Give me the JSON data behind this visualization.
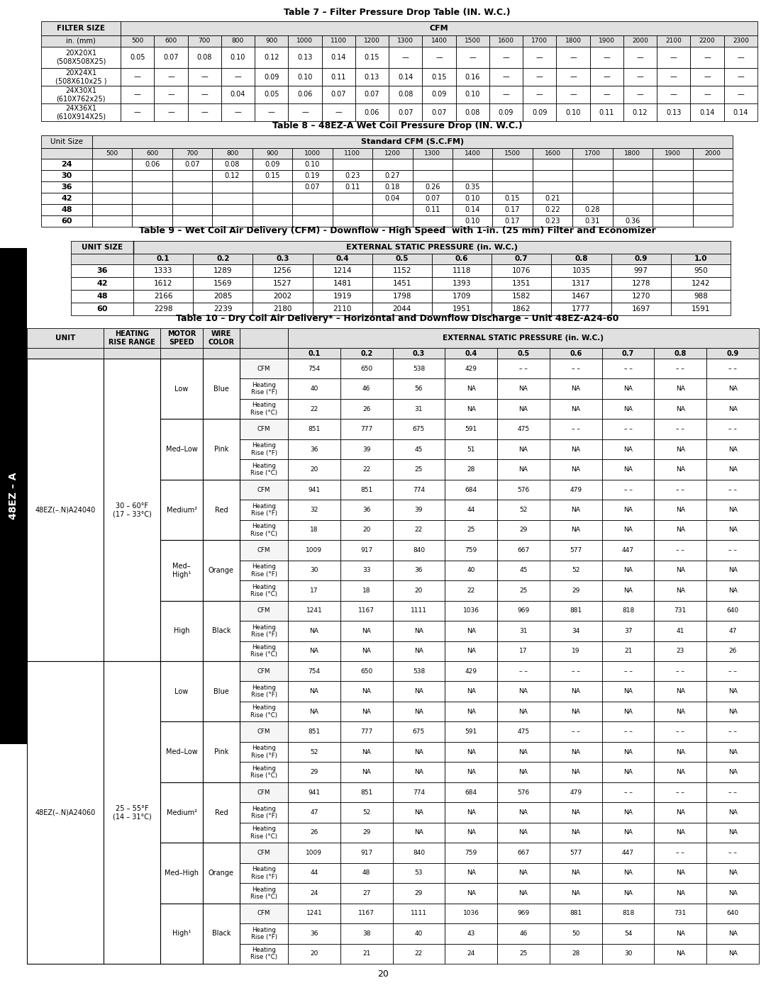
{
  "table7_title": "Table 7 – Filter Pressure Drop Table (IN. W.C.)",
  "table7_cfm_cols": [
    "500",
    "600",
    "700",
    "800",
    "900",
    "1000",
    "1100",
    "1200",
    "1300",
    "1400",
    "1500",
    "1600",
    "1700",
    "1800",
    "1900",
    "2000",
    "2100",
    "2200",
    "2300"
  ],
  "table7_rows": [
    [
      "20X20X1\n(508X508X25)",
      "0.05",
      "0.07",
      "0.08",
      "0.10",
      "0.12",
      "0.13",
      "0.14",
      "0.15",
      "—",
      "—",
      "—",
      "—",
      "—",
      "—",
      "—",
      "—",
      "—",
      "—",
      "—"
    ],
    [
      "20X24X1\n(508X610x25 )",
      "—",
      "—",
      "—",
      "—",
      "0.09",
      "0.10",
      "0.11",
      "0.13",
      "0.14",
      "0.15",
      "0.16",
      "—",
      "—",
      "—",
      "—",
      "—",
      "—",
      "—",
      "—"
    ],
    [
      "24X30X1\n(610X762x25)",
      "—",
      "—",
      "—",
      "0.04",
      "0.05",
      "0.06",
      "0.07",
      "0.07",
      "0.08",
      "0.09",
      "0.10",
      "—",
      "—",
      "—",
      "—",
      "—",
      "—",
      "—",
      "—"
    ],
    [
      "24X36X1\n(610X914X25)",
      "—",
      "—",
      "—",
      "—",
      "—",
      "—",
      "—",
      "0.06",
      "0.07",
      "0.07",
      "0.08",
      "0.09",
      "0.09",
      "0.10",
      "0.11",
      "0.12",
      "0.13",
      "0.14",
      "0.14"
    ]
  ],
  "table8_title": "Table 8 – 48EZ-A Wet Coil Pressure Drop (IN. W.C.)",
  "table8_cfm_cols": [
    "500",
    "600",
    "700",
    "800",
    "900",
    "1000",
    "1100",
    "1200",
    "1300",
    "1400",
    "1500",
    "1600",
    "1700",
    "1800",
    "1900",
    "2000"
  ],
  "table8_rows": [
    [
      "24",
      "",
      "0.06",
      "0.07",
      "0.08",
      "0.09",
      "0.10",
      "",
      "",
      "",
      "",
      "",
      "",
      "",
      "",
      "",
      ""
    ],
    [
      "30",
      "",
      "",
      "",
      "0.12",
      "0.15",
      "0.19",
      "0.23",
      "0.27",
      "",
      "",
      "",
      "",
      "",
      "",
      "",
      ""
    ],
    [
      "36",
      "",
      "",
      "",
      "",
      "",
      "0.07",
      "0.11",
      "0.18",
      "0.26",
      "0.35",
      "",
      "",
      "",
      "",
      "",
      ""
    ],
    [
      "42",
      "",
      "",
      "",
      "",
      "",
      "",
      "",
      "0.04",
      "0.07",
      "0.10",
      "0.15",
      "0.21",
      "",
      "",
      "",
      ""
    ],
    [
      "48",
      "",
      "",
      "",
      "",
      "",
      "",
      "",
      "",
      "0.11",
      "0.14",
      "0.17",
      "0.22",
      "0.28",
      "",
      "",
      ""
    ],
    [
      "60",
      "",
      "",
      "",
      "",
      "",
      "",
      "",
      "",
      "",
      "0.10",
      "0.17",
      "0.23",
      "0.31",
      "0.36",
      "",
      ""
    ]
  ],
  "table9_title": "Table 9 – Wet Coil Air Delivery (CFM) - Downflow - High Speed  with 1-in. (25 mm) Filter and Economizer",
  "table9_esp_cols": [
    "0.1",
    "0.2",
    "0.3",
    "0.4",
    "0.5",
    "0.6",
    "0.7",
    "0.8",
    "0.9",
    "1.0"
  ],
  "table9_rows": [
    [
      "36",
      "1333",
      "1289",
      "1256",
      "1214",
      "1152",
      "1118",
      "1076",
      "1035",
      "997",
      "950"
    ],
    [
      "42",
      "1612",
      "1569",
      "1527",
      "1481",
      "1451",
      "1393",
      "1351",
      "1317",
      "1278",
      "1242"
    ],
    [
      "48",
      "2166",
      "2085",
      "2002",
      "1919",
      "1798",
      "1709",
      "1582",
      "1467",
      "1270",
      "988"
    ],
    [
      "60",
      "2298",
      "2239",
      "2180",
      "2110",
      "2044",
      "1951",
      "1862",
      "1777",
      "1697",
      "1591"
    ]
  ],
  "table10_title": "Table 10 – Dry Coil Air Delivery* – Horizontal and Downflow Discharge – Unit 48EZ-A24-60",
  "table10_esp_cols": [
    "0.1",
    "0.2",
    "0.3",
    "0.4",
    "0.5",
    "0.6",
    "0.7",
    "0.8",
    "0.9"
  ],
  "table10_rows": [
    [
      "CFM",
      "754",
      "650",
      "538",
      "429",
      "– –",
      "– –",
      "– –",
      "– –",
      "– –"
    ],
    [
      "Heating\nRise (°F)",
      "40",
      "46",
      "56",
      "NA",
      "NA",
      "NA",
      "NA",
      "NA",
      "NA"
    ],
    [
      "Heating\nRise (°C)",
      "22",
      "26",
      "31",
      "NA",
      "NA",
      "NA",
      "NA",
      "NA",
      "NA"
    ],
    [
      "CFM",
      "851",
      "777",
      "675",
      "591",
      "475",
      "– –",
      "– –",
      "– –",
      "– –"
    ],
    [
      "Heating\nRise (°F)",
      "36",
      "39",
      "45",
      "51",
      "NA",
      "NA",
      "NA",
      "NA",
      "NA"
    ],
    [
      "Heating\nRise (°C)",
      "20",
      "22",
      "25",
      "28",
      "NA",
      "NA",
      "NA",
      "NA",
      "NA"
    ],
    [
      "CFM",
      "941",
      "851",
      "774",
      "684",
      "576",
      "479",
      "– –",
      "– –",
      "– –"
    ],
    [
      "Heating\nRise (°F)",
      "32",
      "36",
      "39",
      "44",
      "52",
      "NA",
      "NA",
      "NA",
      "NA"
    ],
    [
      "Heating\nRise (°C)",
      "18",
      "20",
      "22",
      "25",
      "29",
      "NA",
      "NA",
      "NA",
      "NA"
    ],
    [
      "CFM",
      "1009",
      "917",
      "840",
      "759",
      "667",
      "577",
      "447",
      "– –",
      "– –"
    ],
    [
      "Heating\nRise (°F)",
      "30",
      "33",
      "36",
      "40",
      "45",
      "52",
      "NA",
      "NA",
      "NA"
    ],
    [
      "Heating\nRise (°C)",
      "17",
      "18",
      "20",
      "22",
      "25",
      "29",
      "NA",
      "NA",
      "NA"
    ],
    [
      "CFM",
      "1241",
      "1167",
      "1111",
      "1036",
      "969",
      "881",
      "818",
      "731",
      "640"
    ],
    [
      "Heating\nRise (°F)",
      "NA",
      "NA",
      "NA",
      "NA",
      "31",
      "34",
      "37",
      "41",
      "47"
    ],
    [
      "Heating\nRise (°C)",
      "NA",
      "NA",
      "NA",
      "NA",
      "17",
      "19",
      "21",
      "23",
      "26"
    ],
    [
      "CFM",
      "754",
      "650",
      "538",
      "429",
      "– –",
      "– –",
      "– –",
      "– –",
      "– –"
    ],
    [
      "Heating\nRise (°F)",
      "NA",
      "NA",
      "NA",
      "NA",
      "NA",
      "NA",
      "NA",
      "NA",
      "NA"
    ],
    [
      "Heating\nRise (°C)",
      "NA",
      "NA",
      "NA",
      "NA",
      "NA",
      "NA",
      "NA",
      "NA",
      "NA"
    ],
    [
      "CFM",
      "851",
      "777",
      "675",
      "591",
      "475",
      "– –",
      "– –",
      "– –",
      "– –"
    ],
    [
      "Heating\nRise (°F)",
      "52",
      "NA",
      "NA",
      "NA",
      "NA",
      "NA",
      "NA",
      "NA",
      "NA"
    ],
    [
      "Heating\nRise (°C)",
      "29",
      "NA",
      "NA",
      "NA",
      "NA",
      "NA",
      "NA",
      "NA",
      "NA"
    ],
    [
      "CFM",
      "941",
      "851",
      "774",
      "684",
      "576",
      "479",
      "– –",
      "– –",
      "– –"
    ],
    [
      "Heating\nRise (°F)",
      "47",
      "52",
      "NA",
      "NA",
      "NA",
      "NA",
      "NA",
      "NA",
      "NA"
    ],
    [
      "Heating\nRise (°C)",
      "26",
      "29",
      "NA",
      "NA",
      "NA",
      "NA",
      "NA",
      "NA",
      "NA"
    ],
    [
      "CFM",
      "1009",
      "917",
      "840",
      "759",
      "667",
      "577",
      "447",
      "– –",
      "– –"
    ],
    [
      "Heating\nRise (°F)",
      "44",
      "48",
      "53",
      "NA",
      "NA",
      "NA",
      "NA",
      "NA",
      "NA"
    ],
    [
      "Heating\nRise (°C)",
      "24",
      "27",
      "29",
      "NA",
      "NA",
      "NA",
      "NA",
      "NA",
      "NA"
    ],
    [
      "CFM",
      "1241",
      "1167",
      "1111",
      "1036",
      "969",
      "881",
      "818",
      "731",
      "640"
    ],
    [
      "Heating\nRise (°F)",
      "36",
      "38",
      "40",
      "43",
      "46",
      "50",
      "54",
      "NA",
      "NA"
    ],
    [
      "Heating\nRise (°C)",
      "20",
      "21",
      "22",
      "24",
      "25",
      "28",
      "30",
      "NA",
      "NA"
    ]
  ],
  "motor_groups_unit1": [
    [
      0,
      3,
      "Low",
      "Blue"
    ],
    [
      3,
      6,
      "Med–Low",
      "Pink"
    ],
    [
      6,
      9,
      "Medium²",
      "Red"
    ],
    [
      9,
      12,
      "Med–\nHigh¹",
      "Orange"
    ],
    [
      12,
      15,
      "High",
      "Black"
    ]
  ],
  "motor_groups_unit2": [
    [
      0,
      3,
      "Low",
      "Blue"
    ],
    [
      3,
      6,
      "Med–Low",
      "Pink"
    ],
    [
      6,
      9,
      "Medium²",
      "Red"
    ],
    [
      9,
      12,
      "Med–High",
      "Orange"
    ],
    [
      12,
      15,
      "High¹",
      "Black"
    ]
  ],
  "unit1_label": "48EZ(–.N)A24040",
  "unit1_range": "30 – 60°F\n(17 – 33°C)",
  "unit2_label": "48EZ(–.N)A24060",
  "unit2_range": "25 – 55°F\n(14 – 31°C)",
  "page_number": "20"
}
